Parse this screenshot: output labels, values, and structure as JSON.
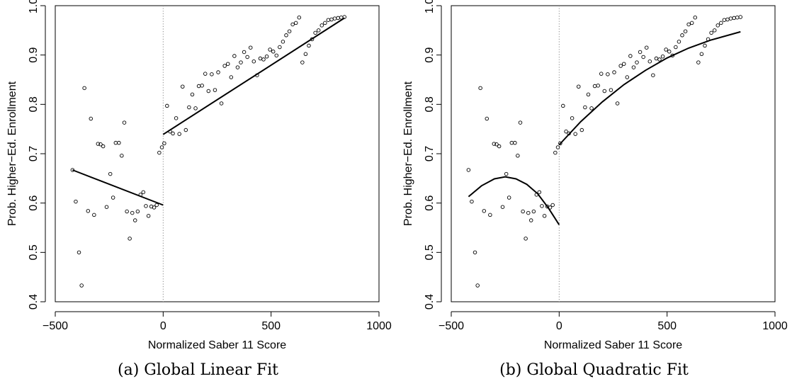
{
  "chart_data": [
    {
      "type": "scatter",
      "caption": "(a) Global Linear Fit",
      "xlabel": "Normalized Saber 11 Score",
      "ylabel": "Prob. Higher−Ed. Enrollment",
      "xlim": [
        -500,
        1000
      ],
      "ylim": [
        0.4,
        1.0
      ],
      "xticks": [
        "−500",
        "0",
        "500",
        "1000"
      ],
      "yticks": [
        "0.4",
        "0.5",
        "0.6",
        "0.7",
        "0.8",
        "0.9",
        "1.0"
      ],
      "cutoff": 0,
      "points": {
        "x": [
          -420,
          -405,
          -390,
          -378,
          -365,
          -348,
          -335,
          -320,
          -302,
          -290,
          -278,
          -262,
          -245,
          -232,
          -220,
          -205,
          -192,
          -180,
          -168,
          -155,
          -143,
          -130,
          -118,
          -105,
          -92,
          -80,
          -68,
          -55,
          -42,
          -30,
          -18,
          -6,
          5,
          18,
          32,
          45,
          60,
          75,
          90,
          105,
          120,
          135,
          150,
          165,
          180,
          195,
          210,
          225,
          240,
          255,
          270,
          285,
          300,
          315,
          330,
          345,
          360,
          375,
          390,
          405,
          420,
          435,
          450,
          465,
          480,
          495,
          510,
          525,
          540,
          555,
          570,
          585,
          600,
          615,
          630,
          645,
          660,
          675,
          690,
          705,
          720,
          735,
          750,
          765,
          780,
          795,
          810,
          825,
          840
        ],
        "y": [
          0.667,
          0.603,
          0.5,
          0.433,
          0.833,
          0.584,
          0.771,
          0.576,
          0.72,
          0.719,
          0.715,
          0.592,
          0.659,
          0.611,
          0.722,
          0.722,
          0.696,
          0.763,
          0.583,
          0.528,
          0.58,
          0.565,
          0.583,
          0.617,
          0.622,
          0.594,
          0.574,
          0.593,
          0.591,
          0.596,
          0.702,
          0.713,
          0.721,
          0.797,
          0.745,
          0.741,
          0.772,
          0.74,
          0.836,
          0.748,
          0.794,
          0.82,
          0.792,
          0.837,
          0.838,
          0.862,
          0.827,
          0.861,
          0.829,
          0.865,
          0.802,
          0.878,
          0.882,
          0.855,
          0.898,
          0.875,
          0.885,
          0.906,
          0.896,
          0.915,
          0.887,
          0.859,
          0.893,
          0.891,
          0.897,
          0.911,
          0.907,
          0.899,
          0.916,
          0.927,
          0.94,
          0.948,
          0.962,
          0.965,
          0.976,
          0.885,
          0.902,
          0.919,
          0.932,
          0.945,
          0.95,
          0.96,
          0.965,
          0.971,
          0.972,
          0.974,
          0.975,
          0.976,
          0.977
        ]
      },
      "fit": {
        "left": [
          {
            "x": -420,
            "y": 0.667
          },
          {
            "x": 0,
            "y": 0.596
          }
        ],
        "right": [
          {
            "x": 0,
            "y": 0.739
          },
          {
            "x": 840,
            "y": 0.975
          }
        ]
      }
    },
    {
      "type": "scatter",
      "caption": "(b) Global Quadratic Fit",
      "xlabel": "Normalized Saber 11 Score",
      "ylabel": "Prob. Higher−Ed. Enrollment",
      "xlim": [
        -500,
        1000
      ],
      "ylim": [
        0.4,
        1.0
      ],
      "xticks": [
        "−500",
        "0",
        "500",
        "1000"
      ],
      "yticks": [
        "0.4",
        "0.5",
        "0.6",
        "0.7",
        "0.8",
        "0.9",
        "1.0"
      ],
      "cutoff": 0,
      "points": {
        "x": [
          -420,
          -405,
          -390,
          -378,
          -365,
          -348,
          -335,
          -320,
          -302,
          -290,
          -278,
          -262,
          -245,
          -232,
          -220,
          -205,
          -192,
          -180,
          -168,
          -155,
          -143,
          -130,
          -118,
          -105,
          -92,
          -80,
          -68,
          -55,
          -42,
          -30,
          -18,
          -6,
          5,
          18,
          32,
          45,
          60,
          75,
          90,
          105,
          120,
          135,
          150,
          165,
          180,
          195,
          210,
          225,
          240,
          255,
          270,
          285,
          300,
          315,
          330,
          345,
          360,
          375,
          390,
          405,
          420,
          435,
          450,
          465,
          480,
          495,
          510,
          525,
          540,
          555,
          570,
          585,
          600,
          615,
          630,
          645,
          660,
          675,
          690,
          705,
          720,
          735,
          750,
          765,
          780,
          795,
          810,
          825,
          840
        ],
        "y": [
          0.667,
          0.603,
          0.5,
          0.433,
          0.833,
          0.584,
          0.771,
          0.576,
          0.72,
          0.719,
          0.715,
          0.592,
          0.659,
          0.611,
          0.722,
          0.722,
          0.696,
          0.763,
          0.583,
          0.528,
          0.58,
          0.565,
          0.583,
          0.617,
          0.622,
          0.594,
          0.574,
          0.593,
          0.591,
          0.596,
          0.702,
          0.713,
          0.721,
          0.797,
          0.745,
          0.741,
          0.772,
          0.74,
          0.836,
          0.748,
          0.794,
          0.82,
          0.792,
          0.837,
          0.838,
          0.862,
          0.827,
          0.861,
          0.829,
          0.865,
          0.802,
          0.878,
          0.882,
          0.855,
          0.898,
          0.875,
          0.885,
          0.906,
          0.896,
          0.915,
          0.887,
          0.859,
          0.893,
          0.891,
          0.897,
          0.911,
          0.907,
          0.899,
          0.916,
          0.927,
          0.94,
          0.948,
          0.962,
          0.965,
          0.976,
          0.885,
          0.902,
          0.919,
          0.932,
          0.945,
          0.95,
          0.96,
          0.965,
          0.971,
          0.972,
          0.974,
          0.975,
          0.976,
          0.977
        ]
      },
      "fit": {
        "left": [
          {
            "x": -420,
            "y": 0.613
          },
          {
            "x": -360,
            "y": 0.635
          },
          {
            "x": -300,
            "y": 0.649
          },
          {
            "x": -250,
            "y": 0.653
          },
          {
            "x": -200,
            "y": 0.649
          },
          {
            "x": -150,
            "y": 0.638
          },
          {
            "x": -100,
            "y": 0.619
          },
          {
            "x": -50,
            "y": 0.59
          },
          {
            "x": 0,
            "y": 0.556
          }
        ],
        "right": [
          {
            "x": 0,
            "y": 0.718
          },
          {
            "x": 100,
            "y": 0.765
          },
          {
            "x": 200,
            "y": 0.805
          },
          {
            "x": 300,
            "y": 0.84
          },
          {
            "x": 400,
            "y": 0.869
          },
          {
            "x": 500,
            "y": 0.894
          },
          {
            "x": 600,
            "y": 0.914
          },
          {
            "x": 700,
            "y": 0.93
          },
          {
            "x": 840,
            "y": 0.947
          }
        ]
      }
    }
  ]
}
